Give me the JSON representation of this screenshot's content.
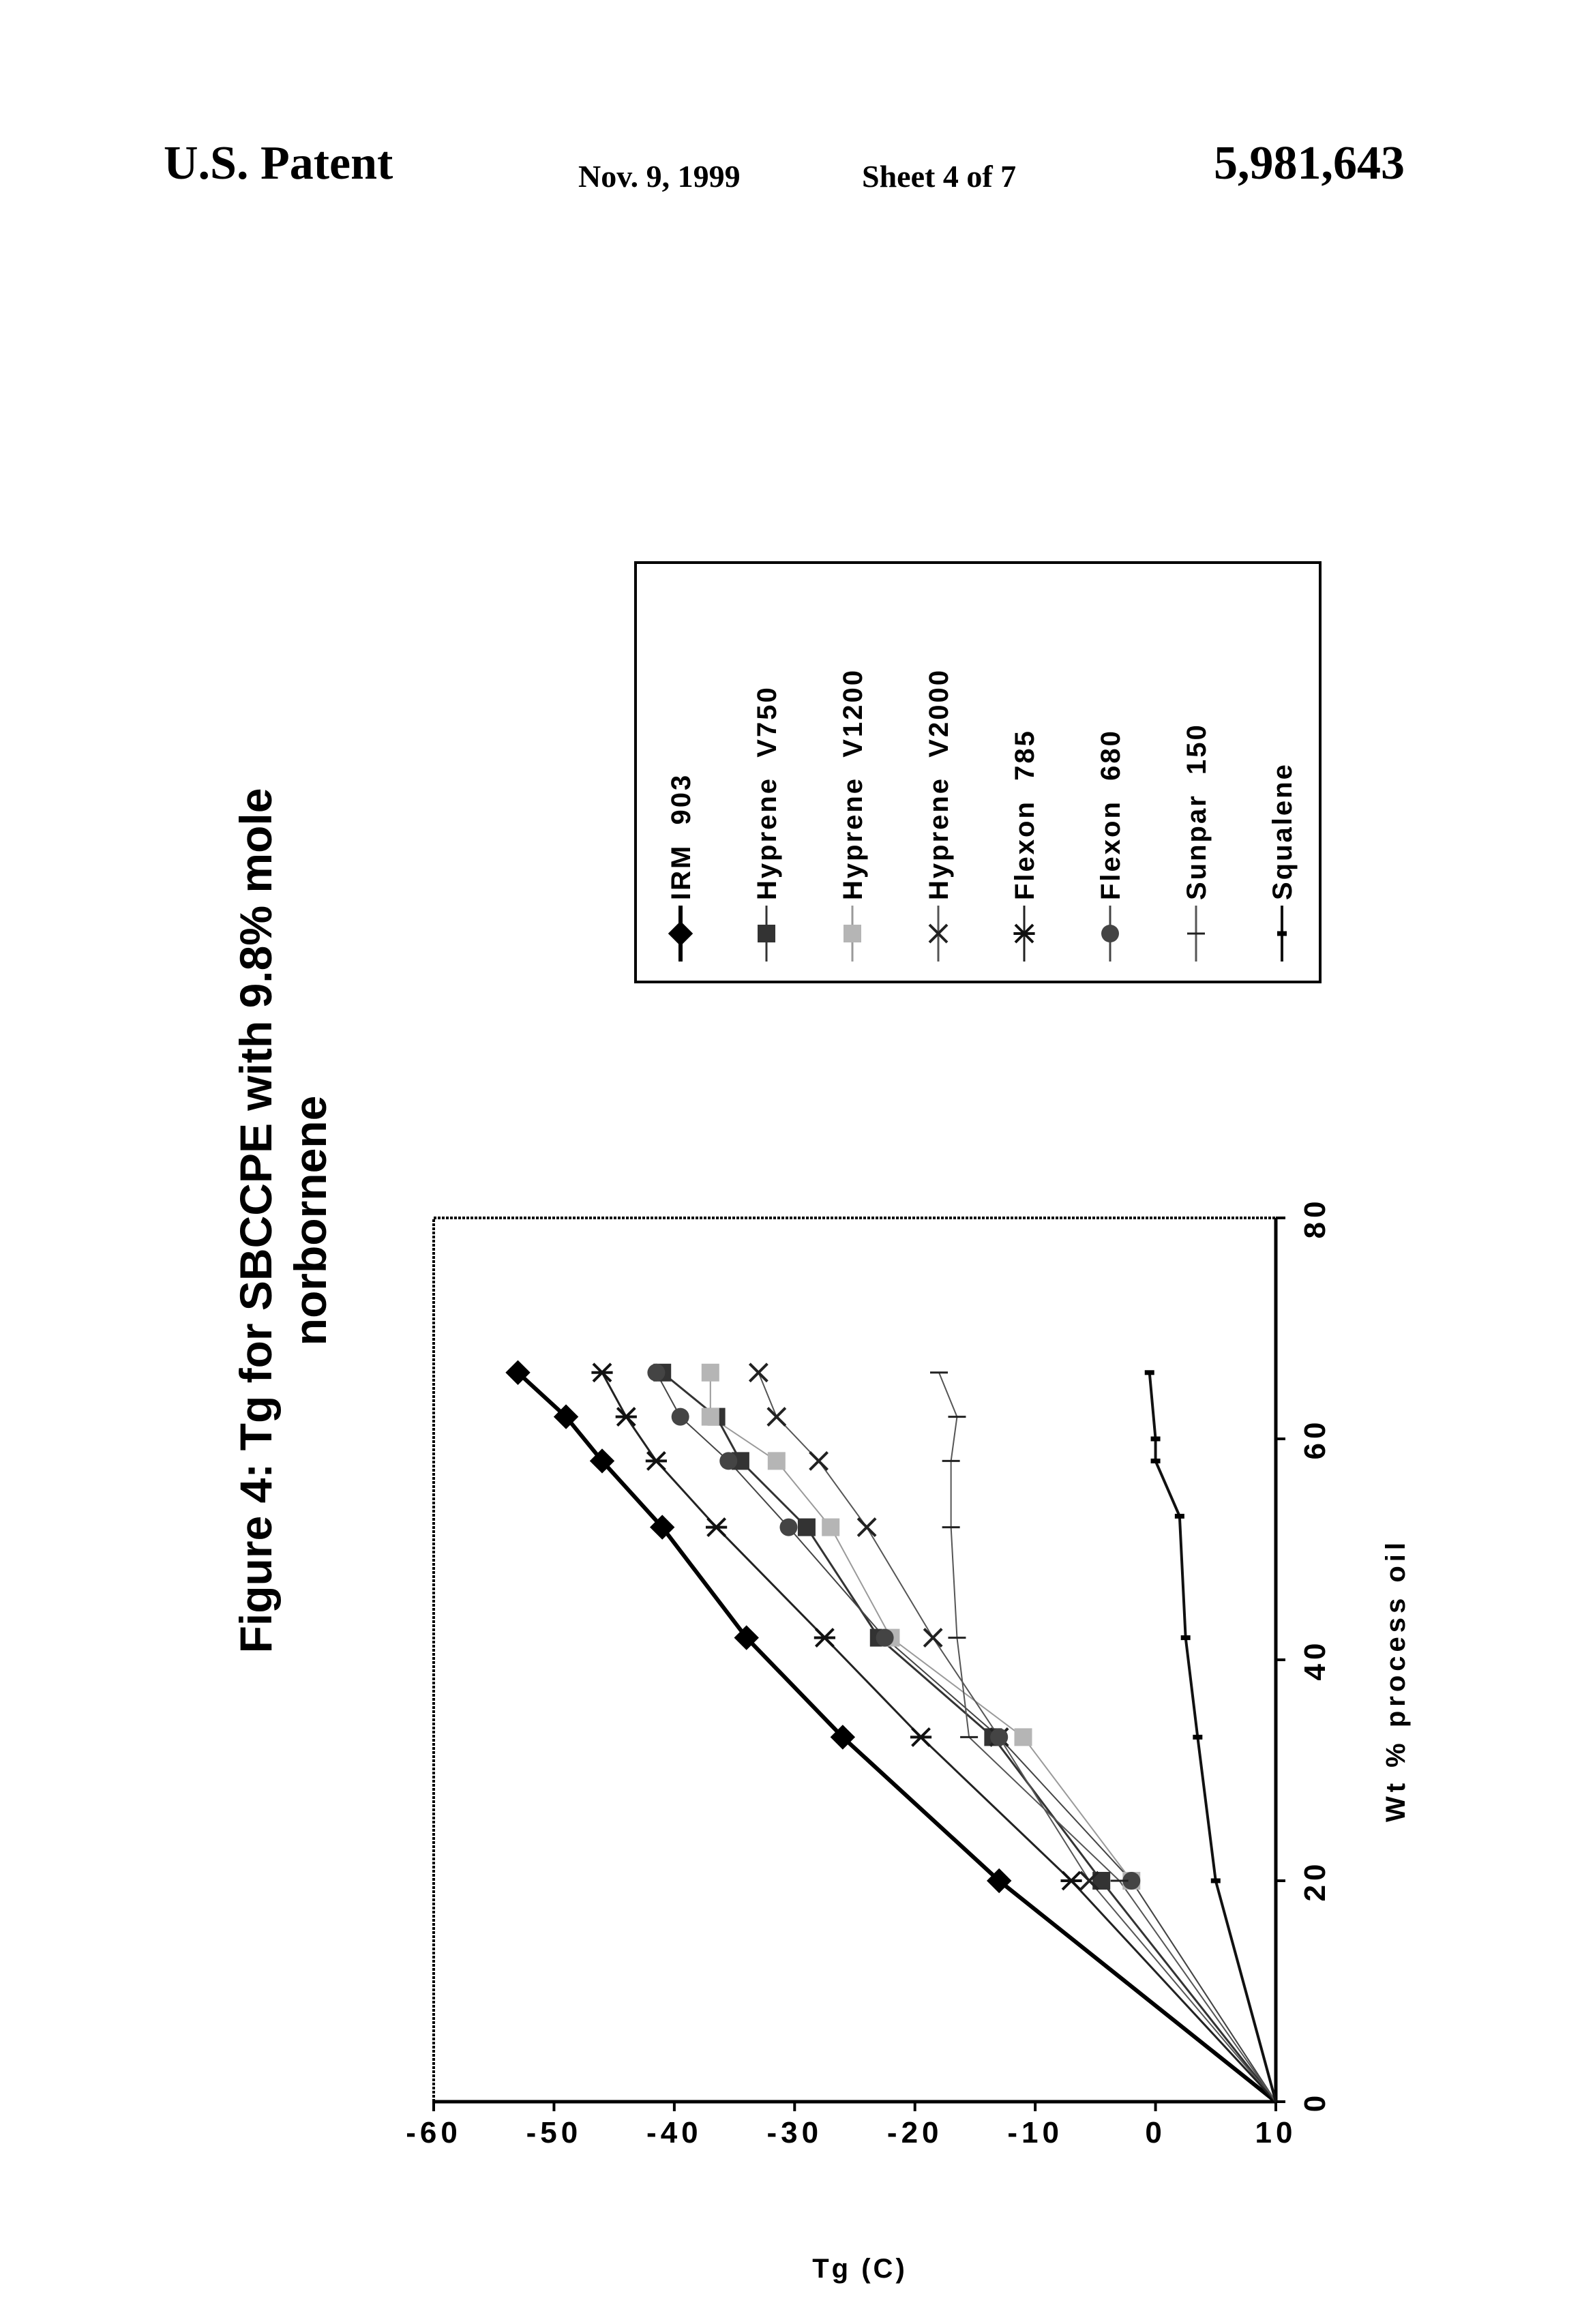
{
  "header": {
    "left": "U.S. Patent",
    "date": "Nov. 9, 1999",
    "sheet": "Sheet 4 of 7",
    "number": "5,981,643"
  },
  "chart_data": {
    "type": "line",
    "title_lines": [
      "Figure 4: Tg for SBCCPE with 9.8% mole",
      "norbornene"
    ],
    "xlabel": "Wt % process oil",
    "ylabel": "Tg (C)",
    "xlim": [
      0,
      80
    ],
    "ylim": [
      -60,
      10
    ],
    "y_reversed": true,
    "x_ticks": [
      "0",
      "20",
      "40",
      "60",
      "80"
    ],
    "y_ticks": [
      "-60",
      "-50",
      "-40",
      "-30",
      "-20",
      "-10",
      "0",
      "10"
    ],
    "grid": false,
    "legend_position": "right",
    "orientation": "rotated-90-ccw",
    "series": [
      {
        "name": "IRM  903",
        "marker": "diamond",
        "color": "#000000",
        "width": 6,
        "x": [
          0,
          20,
          33,
          42,
          52,
          58,
          62,
          66
        ],
        "y": [
          10,
          -13,
          -26,
          -34,
          -41,
          -46,
          -49,
          -53
        ]
      },
      {
        "name": "Hyprene  V750",
        "marker": "square",
        "color": "#333333",
        "width": 3,
        "x": [
          0,
          20,
          33,
          42,
          52,
          58,
          62,
          66
        ],
        "y": [
          10,
          -4.5,
          -13.5,
          -23,
          -29,
          -34.5,
          -36.5,
          -41
        ]
      },
      {
        "name": "Hyprene  V1200",
        "marker": "square-light",
        "color": "#9a9a9a",
        "width": 2,
        "x": [
          0,
          20,
          33,
          42,
          52,
          58,
          62,
          66
        ],
        "y": [
          10,
          -2,
          -11,
          -22,
          -27,
          -31.5,
          -37,
          -37
        ]
      },
      {
        "name": "Hyprene  V2000",
        "marker": "x",
        "color": "#555555",
        "width": 2,
        "x": [
          0,
          20,
          33,
          42,
          52,
          58,
          62,
          66
        ],
        "y": [
          10,
          -5.5,
          -13,
          -18.5,
          -24,
          -28,
          -31.5,
          -33
        ]
      },
      {
        "name": "Flexon  785",
        "marker": "asterisk",
        "color": "#222222",
        "width": 3,
        "x": [
          0,
          20,
          33,
          42,
          52,
          58,
          62,
          66
        ],
        "y": [
          10,
          -7,
          -19.5,
          -27.5,
          -36.5,
          -41.5,
          -44,
          -46
        ]
      },
      {
        "name": "Flexon  680",
        "marker": "circle",
        "color": "#444444",
        "width": 2,
        "x": [
          0,
          20,
          33,
          42,
          52,
          58,
          62,
          66
        ],
        "y": [
          10,
          -2,
          -13,
          -22.5,
          -30.5,
          -35.5,
          -39.5,
          -41.5
        ]
      },
      {
        "name": "Sunpar  150",
        "marker": "plus",
        "color": "#555555",
        "width": 2,
        "x": [
          0,
          20,
          33,
          42,
          52,
          58,
          62,
          66
        ],
        "y": [
          10,
          -3,
          -15.5,
          -16.5,
          -17,
          -17,
          -16.5,
          -18
        ]
      },
      {
        "name": "Squalene",
        "marker": "dash",
        "color": "#111111",
        "width": 4,
        "x": [
          0,
          20,
          33,
          42,
          53,
          58,
          60,
          66
        ],
        "y": [
          10,
          5,
          3.5,
          2.5,
          2,
          0,
          0,
          -0.5
        ]
      }
    ]
  }
}
